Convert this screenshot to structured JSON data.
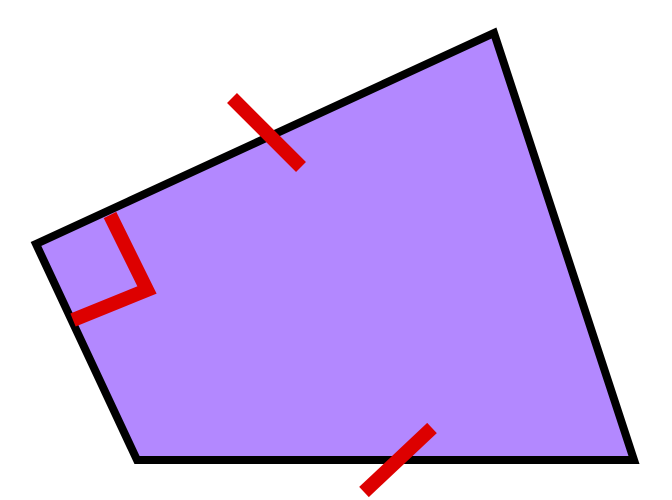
{
  "diagram": {
    "type": "quadrilateral",
    "shape_name": "right-angle-quadrilateral",
    "fill_color": "#b388ff",
    "outline_color": "#000000",
    "marker_color": "#dd0000",
    "markings": {
      "right_angle_vertex": "left",
      "tick_marks": [
        "top-side",
        "bottom-side"
      ],
      "tick_count_per_side": 1
    }
  }
}
